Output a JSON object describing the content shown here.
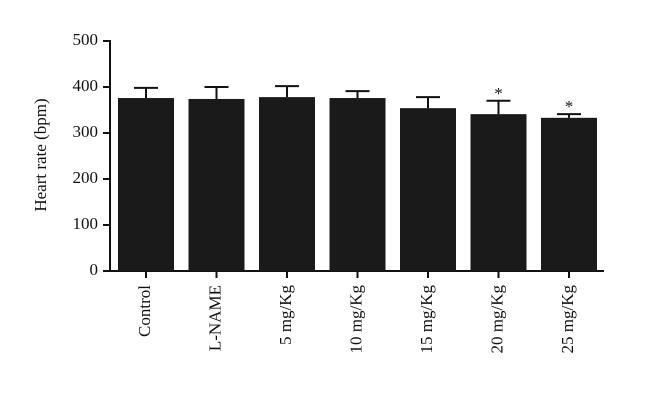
{
  "chart_data": {
    "type": "bar",
    "y_label": "Heart rate (bpm)",
    "categories": [
      "Control",
      "L-NAME",
      "5 mg/Kg",
      "10 mg/Kg",
      "15 mg/Kg",
      "20 mg/Kg",
      "25 mg/Kg"
    ],
    "values": [
      376,
      374,
      378,
      376,
      354,
      341,
      333
    ],
    "errors": [
      22,
      26,
      24,
      15,
      24,
      29,
      8
    ],
    "significance": [
      null,
      null,
      null,
      null,
      null,
      "*",
      "*"
    ],
    "color": "#1a1a1a",
    "ylim": [
      0,
      500
    ],
    "yticks": [
      0,
      100,
      200,
      300,
      400,
      500
    ]
  }
}
